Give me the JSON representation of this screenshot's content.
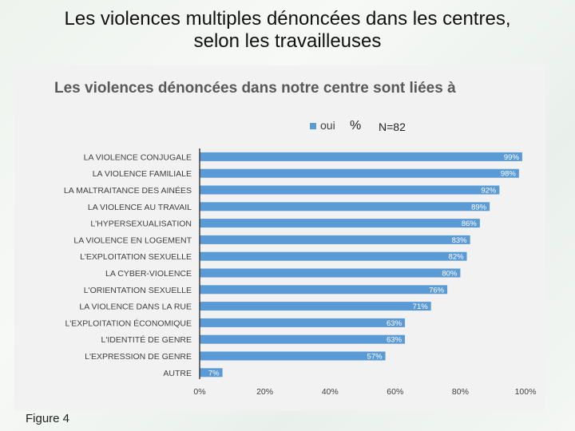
{
  "slide": {
    "title_line1": "Les violences multiples dénoncées dans les centres,",
    "title_line2": "selon les travailleuses",
    "figure_label": "Figure 4"
  },
  "colors": {
    "bar": "#5b9bd5",
    "bar_label": "#ffffff",
    "text": "#404040",
    "axis": "#404040",
    "title": "#595959"
  },
  "chart_data": {
    "type": "bar",
    "orientation": "horizontal",
    "title": "Les violences dénoncées dans notre centre sont liées à",
    "legend": {
      "label": "oui",
      "placement": "top-center"
    },
    "unit_note": "%",
    "sample_note": "N=82",
    "categories": [
      "LA VIOLENCE CONJUGALE",
      "LA VIOLENCE FAMILIALE",
      "LA MALTRAITANCE DES AINÉES",
      "LA VIOLENCE AU TRAVAIL",
      "L'HYPERSEXUALISATION",
      "LA VIOLENCE EN LOGEMENT",
      "L'EXPLOITATION SEXUELLE",
      "LA CYBER-VIOLENCE",
      "L'ORIENTATION SEXUELLE",
      "LA VIOLENCE DANS LA RUE",
      "L'EXPLOITATION ÉCONOMIQUE",
      "L'IDENTITÉ DE GENRE",
      "L'EXPRESSION DE GENRE",
      "AUTRE"
    ],
    "series": [
      {
        "name": "oui",
        "values": [
          99,
          98,
          92,
          89,
          86,
          83,
          82,
          80,
          76,
          71,
          63,
          63,
          57,
          7
        ]
      }
    ],
    "value_labels": [
      "99%",
      "98%",
      "92%",
      "89%",
      "86%",
      "83%",
      "82%",
      "80%",
      "76%",
      "71%",
      "63%",
      "63%",
      "57%",
      "7%"
    ],
    "xlim": [
      0,
      100
    ],
    "xticks": [
      0,
      20,
      40,
      60,
      80,
      100
    ],
    "xtick_labels": [
      "0%",
      "20%",
      "40%",
      "60%",
      "80%",
      "100%"
    ],
    "grid": false
  }
}
